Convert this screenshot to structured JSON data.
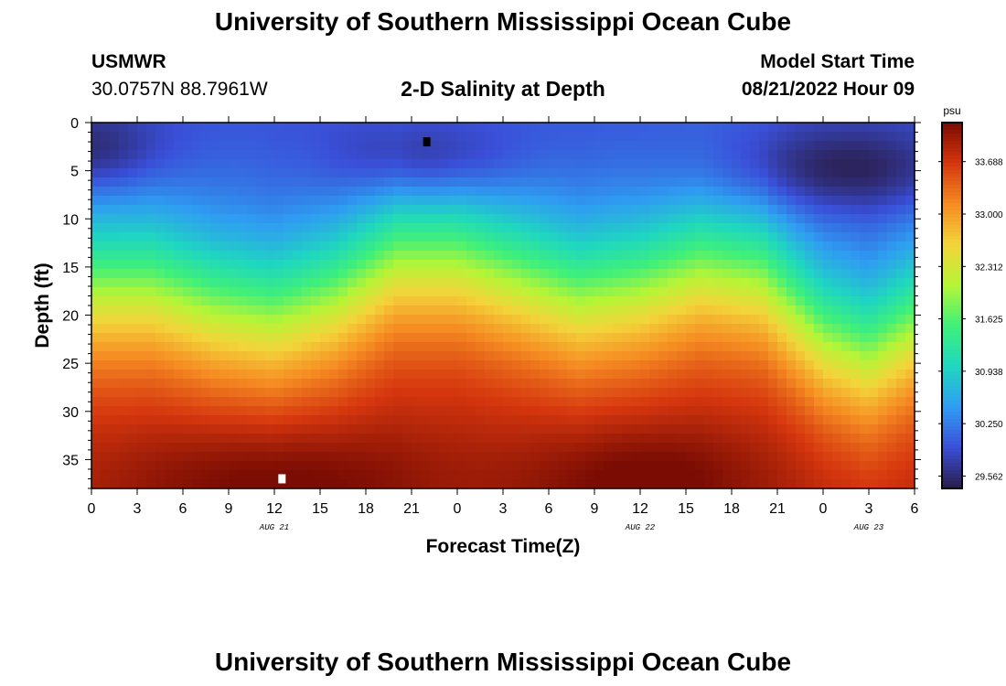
{
  "page": {
    "title_top": "University of Southern Mississippi Ocean Cube",
    "title_bottom": "University of Southern Mississippi Ocean Cube",
    "station": "USMWR",
    "coords": "30.0757N  88.7961W",
    "subtitle": "2-D Salinity at Depth",
    "model_label": "Model Start Time",
    "model_time": "08/21/2022 Hour 09"
  },
  "chart_data": {
    "type": "heatmap",
    "title": "2-D Salinity at Depth",
    "xlabel": "Forecast Time(Z)",
    "ylabel": "Depth (ft)",
    "x_hours_range": [
      0,
      54
    ],
    "x_ticks": [
      "0",
      "3",
      "6",
      "9",
      "12",
      "15",
      "18",
      "21",
      "0",
      "3",
      "6",
      "9",
      "12",
      "15",
      "18",
      "21",
      "0",
      "3",
      "6"
    ],
    "day_labels": [
      {
        "label": "AUG 21",
        "hour": 12
      },
      {
        "label": "AUG 22",
        "hour": 36
      },
      {
        "label": "AUG 23",
        "hour": 51
      }
    ],
    "y_range_ft": [
      0,
      38
    ],
    "y_ticks": [
      "0",
      "5",
      "10",
      "15",
      "20",
      "25",
      "30",
      "35"
    ],
    "colorbar": {
      "unit": "psu",
      "min": 29.4,
      "max": 34.2,
      "ticks": [
        "33.688",
        "33.000",
        "32.312",
        "31.625",
        "30.938",
        "30.250",
        "29.562"
      ],
      "colors": [
        "#2a1d4a",
        "#3a4fd8",
        "#2f9df2",
        "#1fd7c0",
        "#3ff07a",
        "#b6f536",
        "#f3d43a",
        "#f58b22",
        "#d5360e",
        "#7a0c03"
      ]
    },
    "markers": [
      {
        "name": "min",
        "hour": 22,
        "depth_ft": 2,
        "color": "#000000"
      },
      {
        "name": "max",
        "hour": 12.5,
        "depth_ft": 37,
        "color": "#ffffff"
      }
    ],
    "halocline_depth_ft_by_hour": [
      [
        0,
        17
      ],
      [
        4,
        17
      ],
      [
        8,
        19
      ],
      [
        12,
        20
      ],
      [
        16,
        18
      ],
      [
        20,
        14
      ],
      [
        24,
        14
      ],
      [
        28,
        16
      ],
      [
        32,
        18
      ],
      [
        36,
        17
      ],
      [
        40,
        15
      ],
      [
        44,
        16
      ],
      [
        48,
        22
      ],
      [
        51,
        24
      ],
      [
        54,
        21
      ]
    ],
    "surface_fresh_lens": [
      {
        "hour_center": 0,
        "depth_center_ft": 3,
        "hour_width": 5
      },
      {
        "hour_center": 22,
        "depth_center_ft": 4,
        "hour_width": 6
      },
      {
        "hour_center": 49,
        "depth_center_ft": 5,
        "hour_width": 9
      }
    ],
    "deep_salty_core": [
      {
        "hour_center": 12,
        "depth_center_ft": 37,
        "hour_width": 10
      },
      {
        "hour_center": 36,
        "depth_center_ft": 37,
        "hour_width": 8
      }
    ]
  }
}
